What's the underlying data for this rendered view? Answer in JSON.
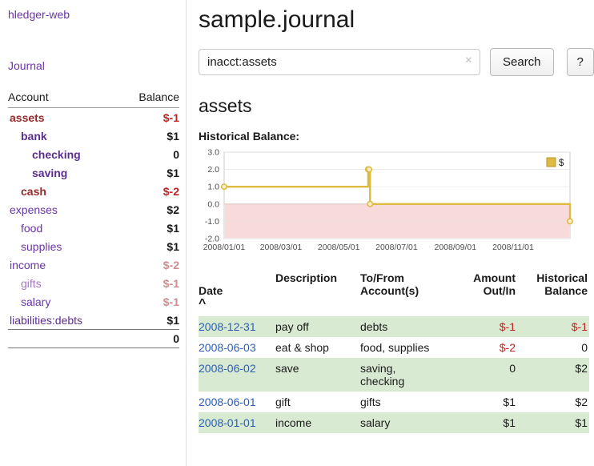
{
  "sidebar": {
    "app_title": "hledger-web",
    "journal_link": "Journal",
    "accounts_header": {
      "account": "Account",
      "balance": "Balance"
    },
    "accounts": [
      {
        "name": "assets",
        "indent": 0,
        "bold": true,
        "name_color": "#942a2a",
        "balance": "$-1",
        "balance_color": "#bf2222"
      },
      {
        "name": "bank",
        "indent": 1,
        "bold": true,
        "name_color": "#5c2d91",
        "balance": "$1",
        "balance_color": "#1a1a1a"
      },
      {
        "name": "checking",
        "indent": 2,
        "bold": true,
        "name_color": "#5c2d91",
        "balance": "0",
        "balance_color": "#1a1a1a"
      },
      {
        "name": "saving",
        "indent": 2,
        "bold": true,
        "name_color": "#5c2d91",
        "balance": "$1",
        "balance_color": "#1a1a1a"
      },
      {
        "name": "cash",
        "indent": 1,
        "bold": true,
        "name_color": "#942a2a",
        "balance": "$-2",
        "balance_color": "#bf2222"
      },
      {
        "name": "expenses",
        "indent": 0,
        "bold": false,
        "name_color": "#6a35a8",
        "balance": "$2",
        "balance_color": "#1a1a1a"
      },
      {
        "name": "food",
        "indent": 1,
        "bold": false,
        "name_color": "#6a35a8",
        "balance": "$1",
        "balance_color": "#1a1a1a"
      },
      {
        "name": "supplies",
        "indent": 1,
        "bold": false,
        "name_color": "#6a35a8",
        "balance": "$1",
        "balance_color": "#1a1a1a"
      },
      {
        "name": "income",
        "indent": 0,
        "bold": false,
        "name_color": "#6a35a8",
        "balance": "$-2",
        "balance_color": "#cf8d8d"
      },
      {
        "name": "gifts",
        "indent": 1,
        "bold": false,
        "name_color": "#a478c4",
        "balance": "$-1",
        "balance_color": "#cf8d8d"
      },
      {
        "name": "salary",
        "indent": 1,
        "bold": false,
        "name_color": "#6a35a8",
        "balance": "$-1",
        "balance_color": "#cf8d8d"
      },
      {
        "name": "liabilities:debts",
        "indent": 0,
        "bold": false,
        "name_color": "#5c2d91",
        "balance": "$1",
        "balance_color": "#1a1a1a"
      }
    ],
    "total": "0"
  },
  "main": {
    "title": "sample.journal",
    "search": {
      "value": "inacct:assets",
      "clear_icon": "×",
      "button": "Search",
      "help": "?"
    },
    "account_heading": "assets",
    "chart_label": "Historical Balance:"
  },
  "chart_data": {
    "type": "line",
    "title": "Historical Balance",
    "step": "after",
    "series": [
      {
        "name": "$",
        "points": [
          [
            "2008-01-01",
            1
          ],
          [
            "2008-06-01",
            2
          ],
          [
            "2008-06-02",
            2
          ],
          [
            "2008-06-03",
            0
          ],
          [
            "2008-12-31",
            -1
          ]
        ]
      }
    ],
    "xrange": [
      "2008-01-01",
      "2008-12-31"
    ],
    "ylim": [
      -2,
      3
    ],
    "yticks": [
      "3.0",
      "2.0",
      "1.0",
      "0.0",
      "-1.0",
      "-2.0"
    ],
    "xticks": [
      "2008/01/01",
      "2008/03/01",
      "2008/05/01",
      "2008/07/01",
      "2008/09/01",
      "2008/11/01"
    ],
    "grid": true,
    "legend": {
      "label": "$",
      "position": "top-right"
    },
    "line_color": "#ddba42",
    "marker_fill": "#faf0cd",
    "negative_region_color": "#f9dada",
    "zero_line_color": "#e09c9c"
  },
  "register": {
    "headers": [
      "Date",
      "Description",
      "To/From\nAccount(s)",
      "Amount\nOut/In",
      "Historical\nBalance"
    ],
    "sort_icon": "^",
    "shade_color": "#d9ead3",
    "rows": [
      {
        "date": "2008-12-31",
        "description": "pay off",
        "accounts": "debts",
        "amount": "$-1",
        "amount_color": "#bf2222",
        "balance": "$-1",
        "balance_color": "#bf2222",
        "shaded": true
      },
      {
        "date": "2008-06-03",
        "description": "eat & shop",
        "accounts": "food, supplies",
        "amount": "$-2",
        "amount_color": "#bf2222",
        "balance": "0",
        "balance_color": "#1a1a1a",
        "shaded": false
      },
      {
        "date": "2008-06-02",
        "description": "save",
        "accounts": "saving,\nchecking",
        "amount": "0",
        "amount_color": "#1a1a1a",
        "balance": "$2",
        "balance_color": "#1a1a1a",
        "shaded": true
      },
      {
        "date": "2008-06-01",
        "description": "gift",
        "accounts": "gifts",
        "amount": "$1",
        "amount_color": "#1a1a1a",
        "balance": "$2",
        "balance_color": "#1a1a1a",
        "shaded": false
      },
      {
        "date": "2008-01-01",
        "description": "income",
        "accounts": "salary",
        "amount": "$1",
        "amount_color": "#1a1a1a",
        "balance": "$1",
        "balance_color": "#1a1a1a",
        "shaded": true
      }
    ]
  }
}
